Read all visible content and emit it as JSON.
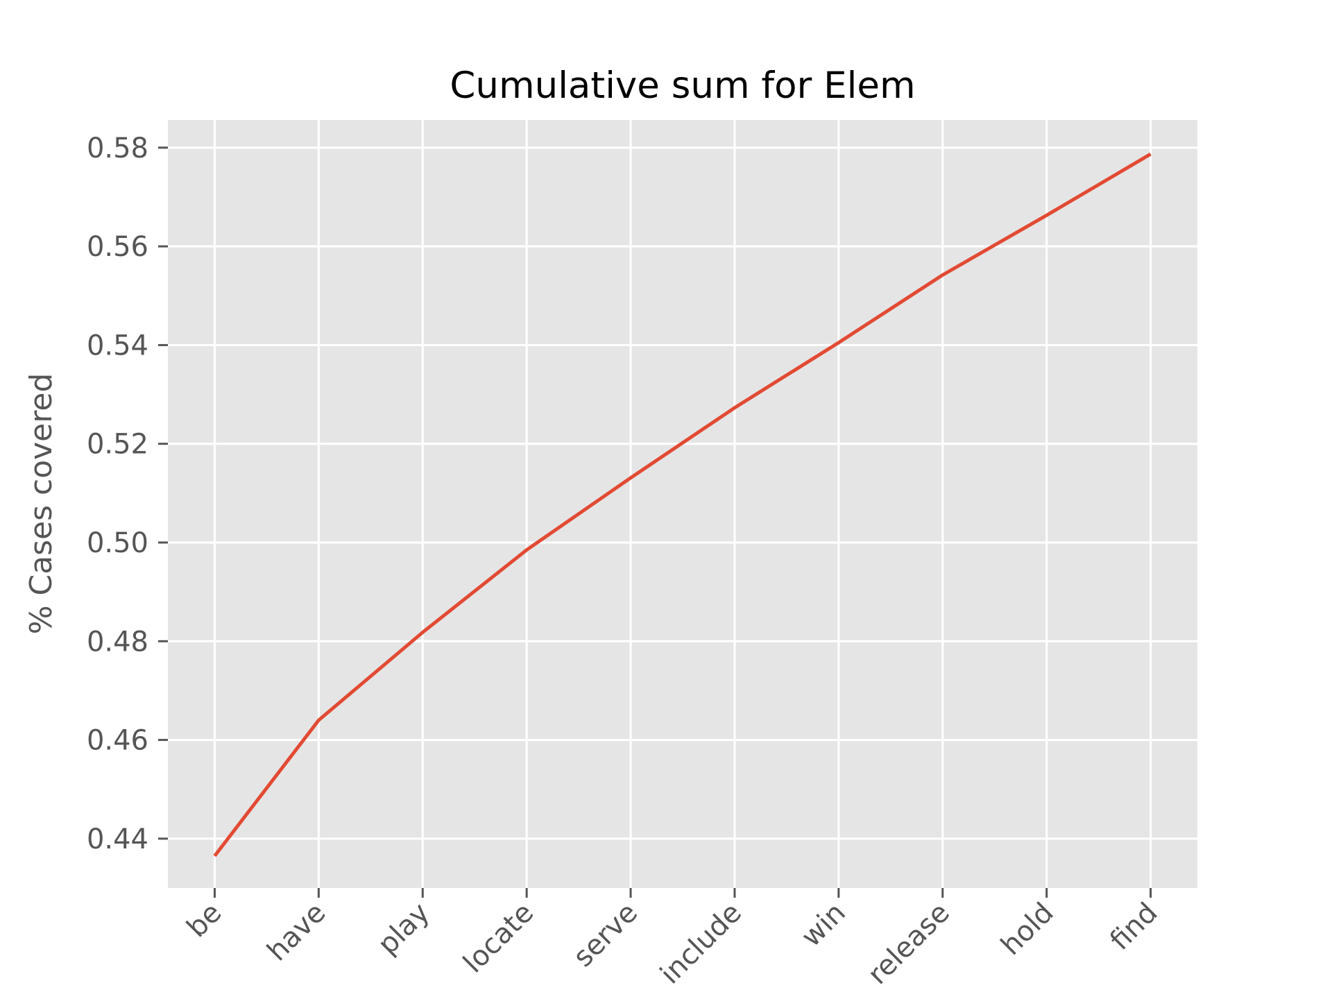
{
  "chart_data": {
    "type": "line",
    "title": "Cumulative sum for Elem",
    "xlabel": "",
    "ylabel": "% Cases covered",
    "categories": [
      "be",
      "have",
      "play",
      "locate",
      "serve",
      "include",
      "win",
      "release",
      "hold",
      "find"
    ],
    "values": [
      0.4365,
      0.464,
      0.4818,
      0.4985,
      0.5131,
      0.5273,
      0.5405,
      0.5542,
      0.5663,
      0.5787
    ],
    "series_name": "cumulative-sum",
    "ylim": [
      0.43,
      0.5856
    ],
    "x_margin": 0.45,
    "y_ticks": [
      0.44,
      0.46,
      0.48,
      0.5,
      0.52,
      0.54,
      0.56,
      0.58
    ],
    "y_tick_labels": [
      "0.44",
      "0.46",
      "0.48",
      "0.50",
      "0.52",
      "0.54",
      "0.56",
      "0.58"
    ],
    "grid": true,
    "legend_position": "none",
    "style": "ggplot",
    "colors": {
      "line": "#E24A33",
      "plot_background": "#E5E5E5",
      "grid": "#FFFFFF",
      "tick_text": "#555555",
      "axis_label_text": "#555555",
      "title_text": "#000000",
      "figure_background": "#FFFFFF"
    },
    "line_width": 5
  }
}
